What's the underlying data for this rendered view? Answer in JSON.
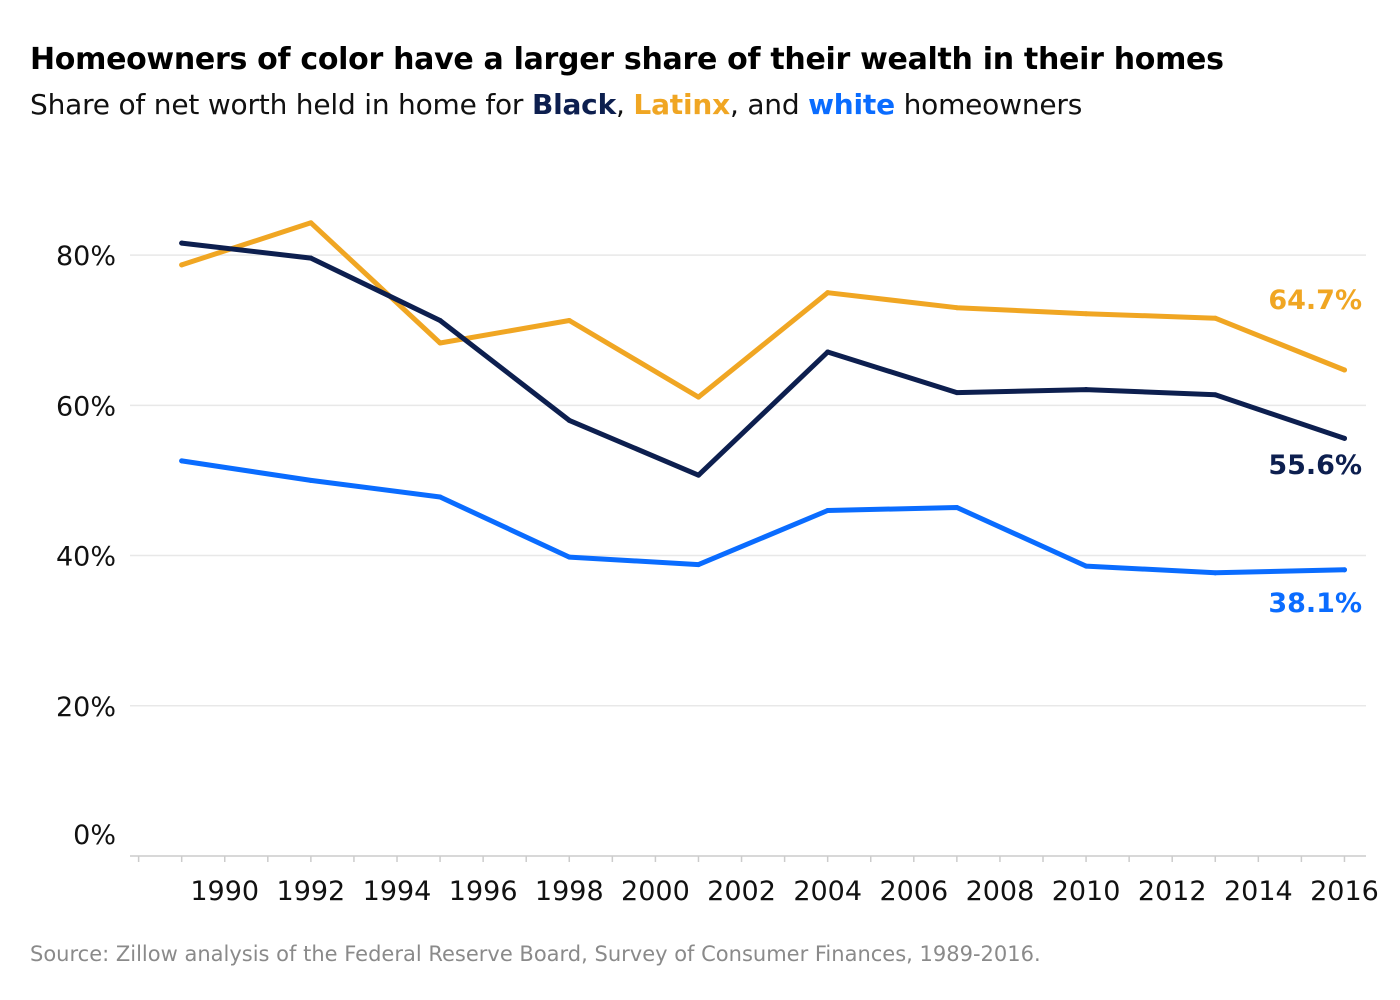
{
  "header": {
    "title": "Homeowners of color have a larger share of their wealth in their homes",
    "subtitle_prefix": "Share of net worth held in home for ",
    "subtitle_black": "Black",
    "subtitle_sep1": ", ",
    "subtitle_latinx": "Latinx",
    "subtitle_sep2": ", and ",
    "subtitle_white": "white",
    "subtitle_suffix": " homeowners"
  },
  "source": "Source: Zillow analysis of the Federal Reserve Board, Survey of Consumer Finances, 1989-2016.",
  "colors": {
    "black_series": "#0d1f4f",
    "latinx_series": "#f0a623",
    "white_series": "#0a6cff",
    "grid": "#e8e8e8",
    "axis": "#cccccc"
  },
  "chart_data": {
    "type": "line",
    "title": "Homeowners of color have a larger share of their wealth in their homes",
    "subtitle": "Share of net worth held in home for Black, Latinx, and white homeowners",
    "xlabel": "",
    "ylabel": "",
    "xlim": [
      1987.8,
      2016.5
    ],
    "ylim": [
      0,
      90
    ],
    "x_ticks": [
      1990,
      1992,
      1994,
      1996,
      1998,
      2000,
      2002,
      2004,
      2006,
      2008,
      2010,
      2012,
      2014,
      2016
    ],
    "x_tick_labels": [
      "1990",
      "1992",
      "1994",
      "1996",
      "1998",
      "2000",
      "2002",
      "2004",
      "2006",
      "2008",
      "2010",
      "2012",
      "2014",
      "2016"
    ],
    "y_ticks": [
      0,
      20,
      40,
      60,
      80
    ],
    "y_tick_labels": [
      "0%",
      "20%",
      "40%",
      "60%",
      "80%"
    ],
    "grid": true,
    "series": [
      {
        "key": "latinx",
        "color": "#f0a623",
        "x": [
          1989,
          1992,
          1995,
          1998,
          2001,
          2004,
          2007,
          2010,
          2013,
          2016
        ],
        "values": [
          78.7,
          84.3,
          68.3,
          71.3,
          61.1,
          75.0,
          73.0,
          72.2,
          71.6,
          64.7
        ],
        "end_label": "64.7%"
      },
      {
        "key": "black",
        "color": "#0d1f4f",
        "x": [
          1989,
          1992,
          1995,
          1998,
          2001,
          2004,
          2007,
          2010,
          2013,
          2016
        ],
        "values": [
          81.6,
          79.6,
          71.3,
          58.0,
          50.7,
          67.1,
          61.7,
          62.1,
          61.4,
          55.6
        ],
        "end_label": "55.6%"
      },
      {
        "key": "white",
        "color": "#0a6cff",
        "x": [
          1989,
          1992,
          1995,
          1998,
          2001,
          2004,
          2007,
          2010,
          2013,
          2016
        ],
        "values": [
          52.6,
          50.0,
          47.8,
          39.8,
          38.8,
          46.0,
          46.4,
          38.6,
          37.7,
          38.1
        ],
        "end_label": "38.1%"
      }
    ]
  }
}
